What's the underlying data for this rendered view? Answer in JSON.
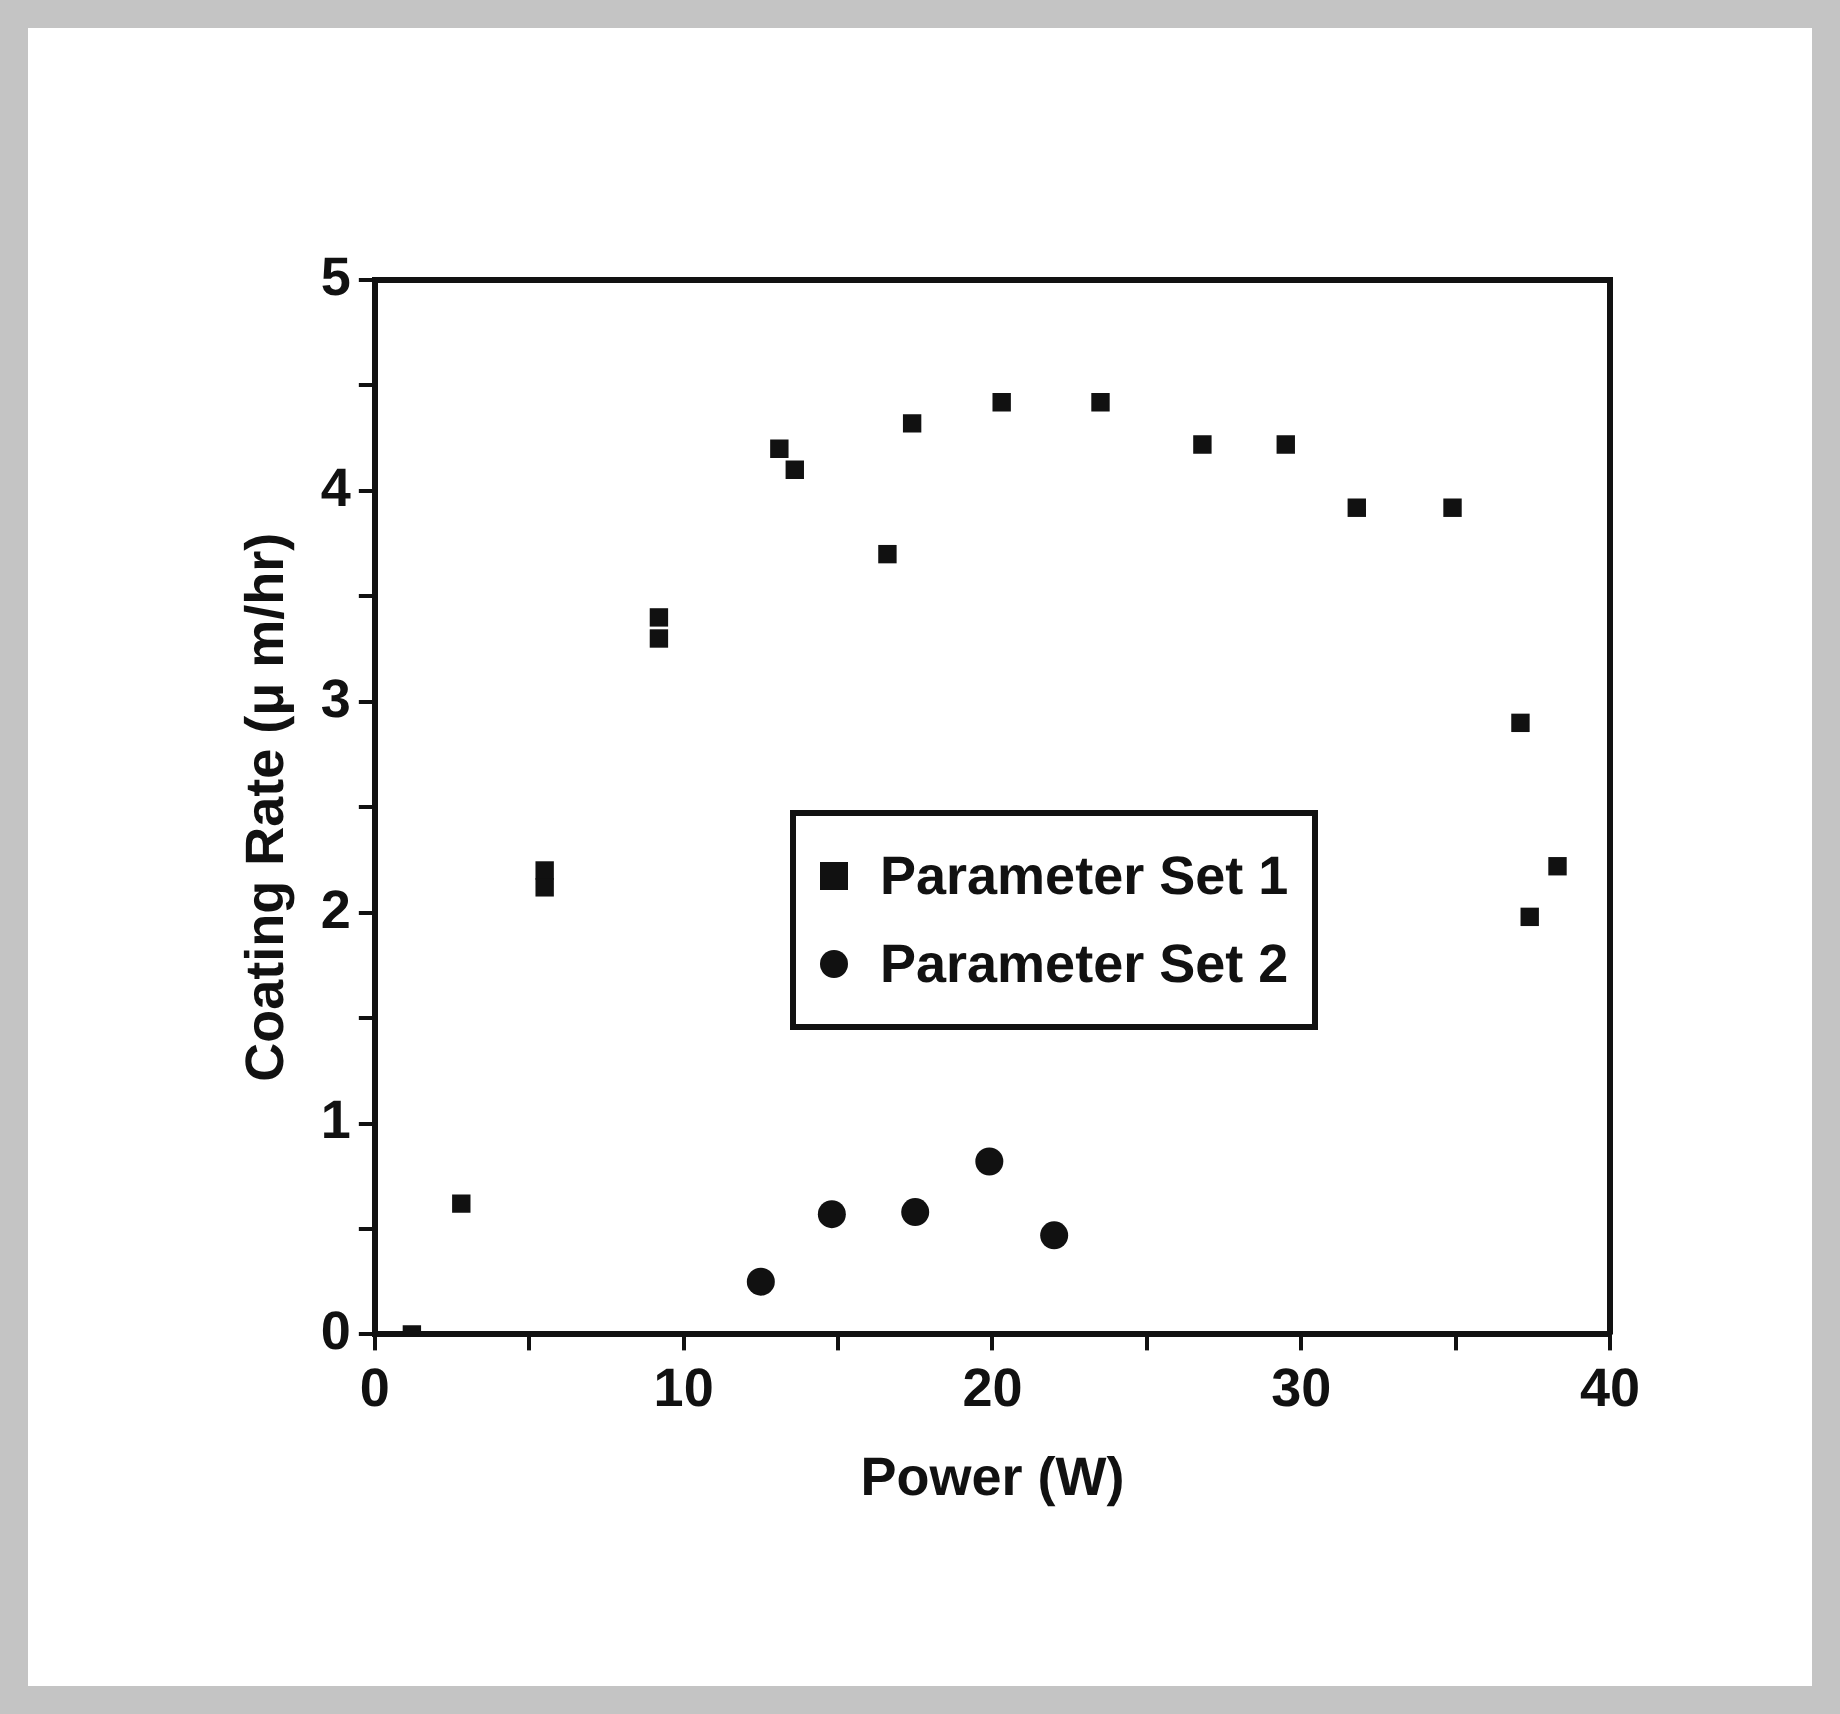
{
  "chart_data": {
    "type": "scatter",
    "xlabel": "Power (W)",
    "ylabel": "Coating Rate (μ m/hr)",
    "xlim": [
      0,
      40
    ],
    "ylim": [
      0,
      5
    ],
    "xticks": [
      0,
      {
        "value": 5,
        "label": null
      },
      10,
      {
        "value": 15,
        "label": null
      },
      20,
      {
        "value": 25,
        "label": null
      },
      30,
      {
        "value": 35,
        "label": null
      },
      40
    ],
    "yticks": [
      0,
      {
        "value": 0.5,
        "label": null
      },
      1,
      {
        "value": 1.5,
        "label": null
      },
      2,
      {
        "value": 2.5,
        "label": null
      },
      3,
      {
        "value": 3.5,
        "label": null
      },
      4,
      {
        "value": 4.5,
        "label": null
      },
      5
    ],
    "grid": false,
    "legend": "center",
    "series": [
      {
        "name": "Parameter Set 1",
        "color": "#111111",
        "marker": "square",
        "x": [
          1.2,
          2.8,
          5.5,
          5.5,
          9.2,
          9.2,
          13.1,
          13.6,
          16.6,
          17.4,
          20.3,
          23.5,
          26.8,
          29.5,
          31.8,
          34.9,
          37.1,
          37.4,
          38.3
        ],
        "values": [
          0.0,
          0.62,
          2.2,
          2.12,
          3.4,
          3.3,
          4.2,
          4.1,
          3.7,
          4.32,
          4.42,
          4.42,
          4.22,
          4.22,
          3.92,
          3.92,
          2.9,
          1.98,
          2.22
        ]
      },
      {
        "name": "Parameter Set 2",
        "color": "#111111",
        "marker": "circle",
        "x": [
          12.5,
          14.8,
          17.5,
          19.9,
          22.0
        ],
        "values": [
          0.25,
          0.57,
          0.58,
          0.82,
          0.47
        ]
      }
    ]
  }
}
